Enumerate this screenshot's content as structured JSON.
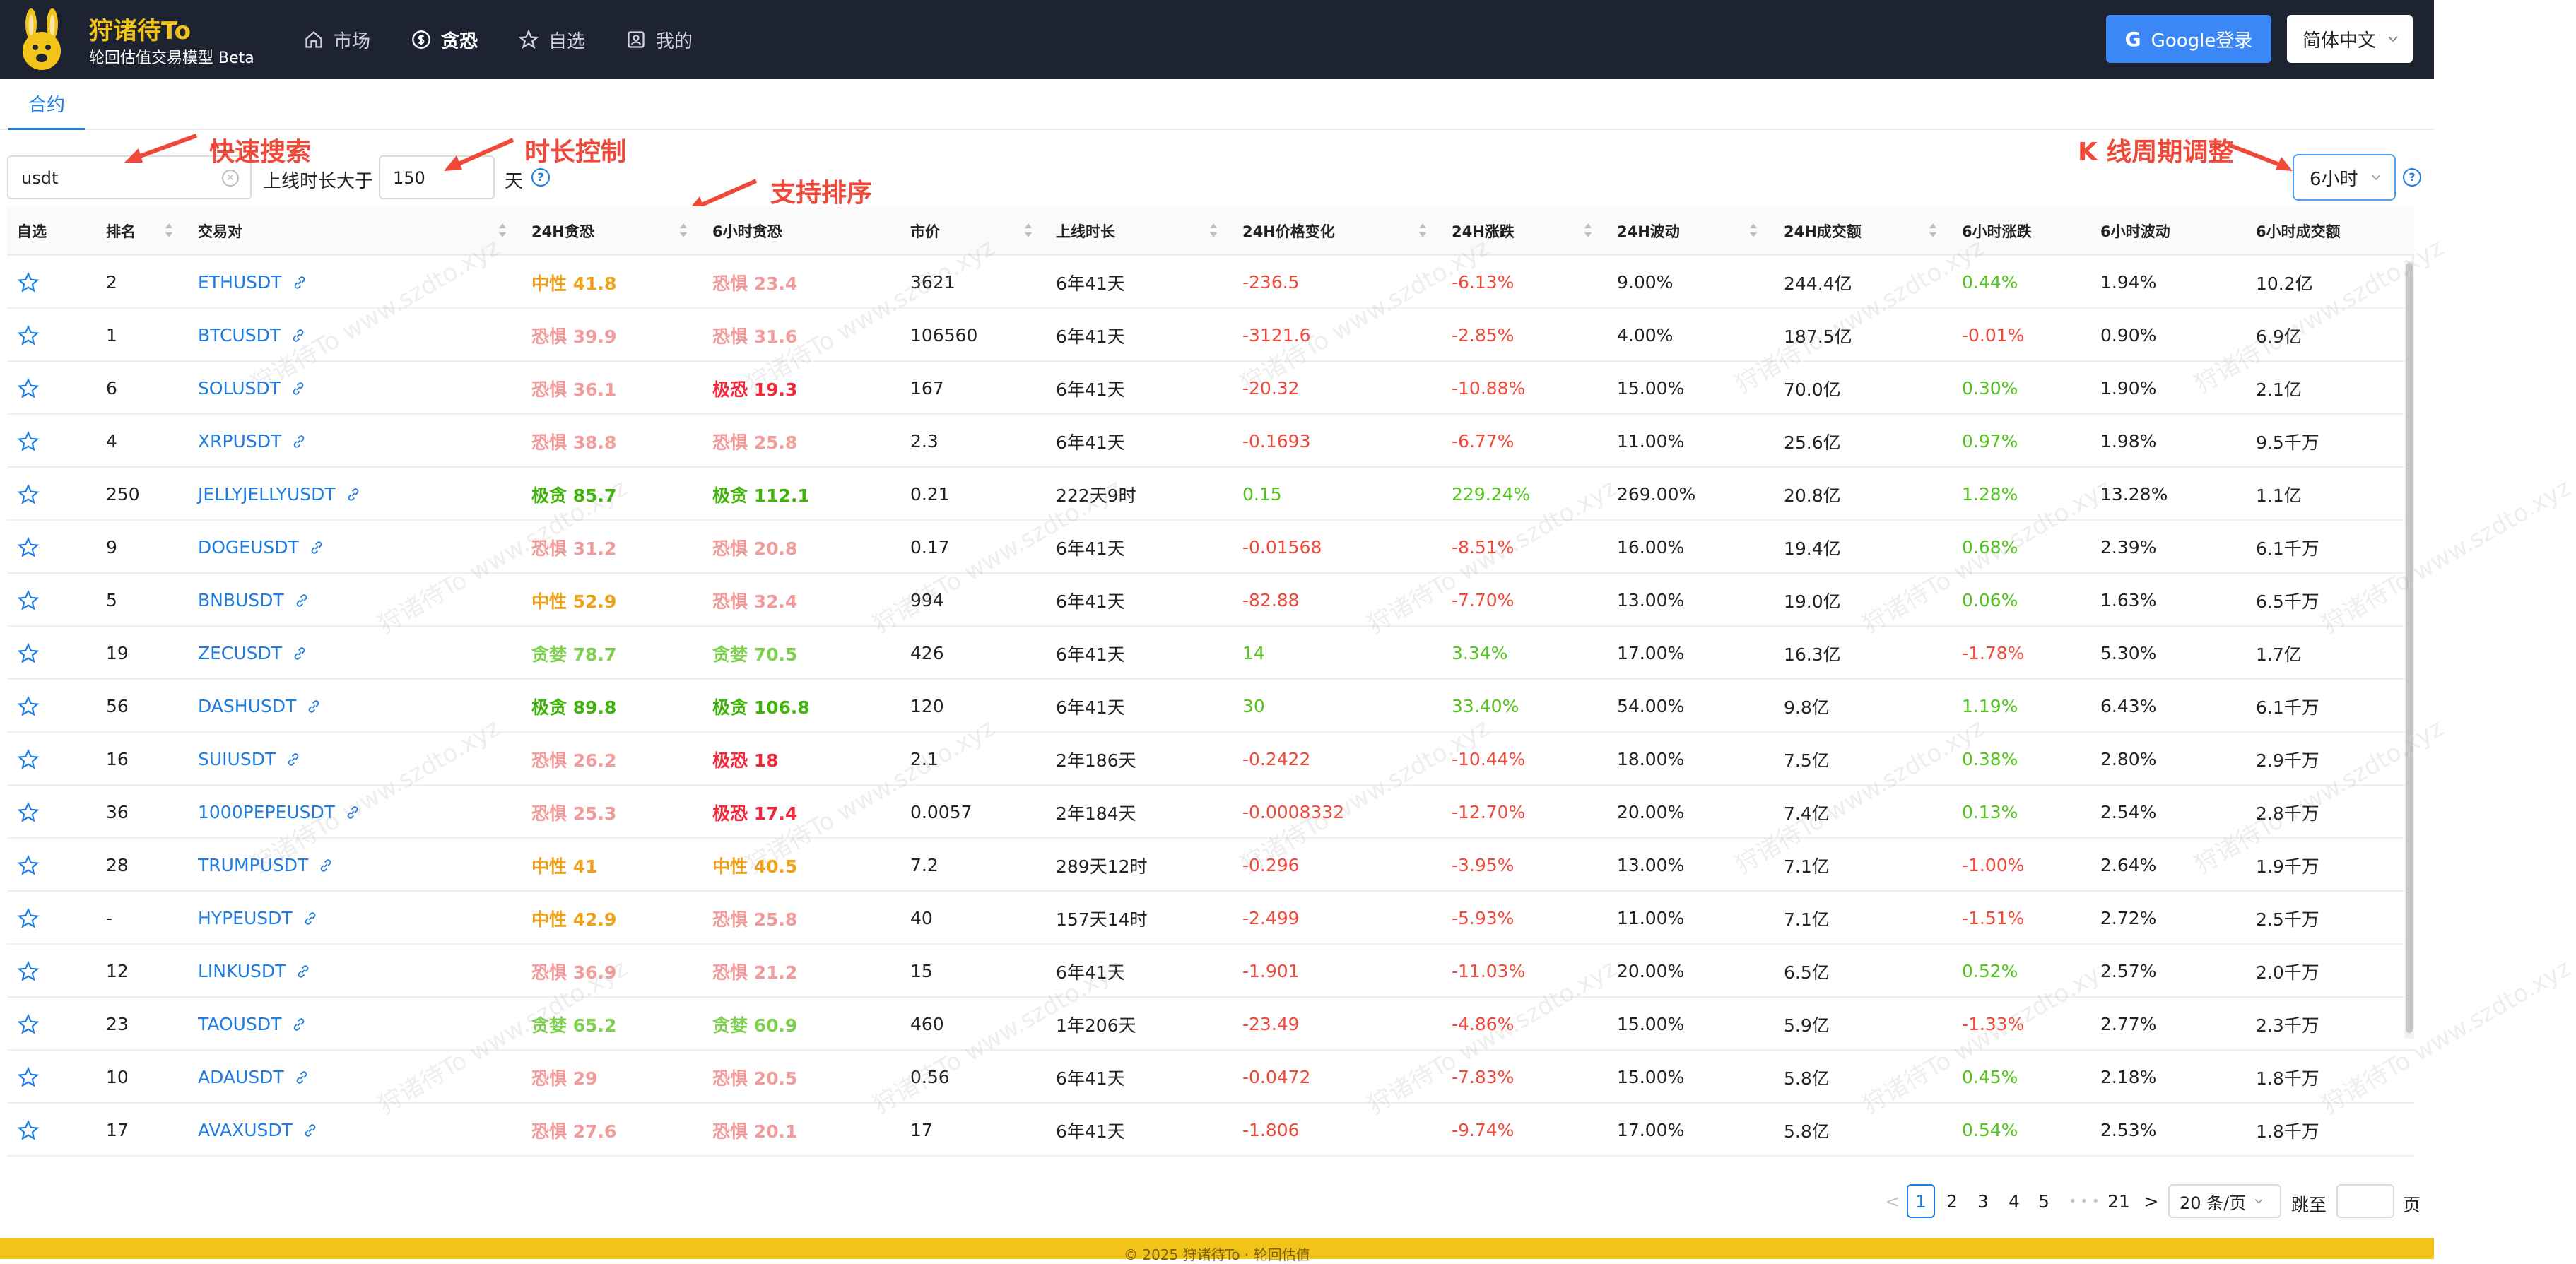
{
  "header": {
    "brand_title": "狩诸待To",
    "brand_subtitle": "轮回估值交易模型 Beta",
    "nav": [
      {
        "label": "市场",
        "icon": "home-icon",
        "active": false
      },
      {
        "label": "贪恐",
        "icon": "dollar-icon",
        "active": true
      },
      {
        "label": "自选",
        "icon": "star-icon",
        "active": false
      },
      {
        "label": "我的",
        "icon": "user-icon",
        "active": false
      }
    ],
    "login_label": "Google登录",
    "google_glyph": "G",
    "language": "简体中文"
  },
  "tabs": {
    "contract": "合约"
  },
  "filters": {
    "search_value": "usdt",
    "duration_label": "上线时长大于",
    "duration_value": "150",
    "duration_unit": "天",
    "period": "6小时",
    "help_glyph": "?"
  },
  "annotations": {
    "search": "快速搜索",
    "duration": "时长控制",
    "sort": "支持排序",
    "period": "K 线周期调整"
  },
  "table": {
    "headers": [
      "自选",
      "排名",
      "交易对",
      "24H贪恐",
      "6小时贪恐",
      "市价",
      "上线时长",
      "24H价格变化",
      "24H涨跌",
      "24H波动",
      "24H成交额",
      "6小时涨跌",
      "6小时波动",
      "6小时成交额"
    ],
    "rows": [
      {
        "rank": "2",
        "pair": "ETHUSDT",
        "s24": "中性 41.8",
        "s24c": "neutral",
        "s6": "恐惧 23.4",
        "s6c": "fear",
        "price": "3621",
        "age": "6年41天",
        "chg": "-236.5",
        "pct": "-6.13%",
        "vol": "9.00%",
        "amt": "244.4亿",
        "pct6": "0.44%",
        "vol6": "1.94%",
        "amt6": "10.2亿"
      },
      {
        "rank": "1",
        "pair": "BTCUSDT",
        "s24": "恐惧 39.9",
        "s24c": "fear",
        "s6": "恐惧 31.6",
        "s6c": "fear",
        "price": "106560",
        "age": "6年41天",
        "chg": "-3121.6",
        "pct": "-2.85%",
        "vol": "4.00%",
        "amt": "187.5亿",
        "pct6": "-0.01%",
        "vol6": "0.90%",
        "amt6": "6.9亿"
      },
      {
        "rank": "6",
        "pair": "SOLUSDT",
        "s24": "恐惧 36.1",
        "s24c": "fear",
        "s6": "极恐 19.3",
        "s6c": "xfear",
        "price": "167",
        "age": "6年41天",
        "chg": "-20.32",
        "pct": "-10.88%",
        "vol": "15.00%",
        "amt": "70.0亿",
        "pct6": "0.30%",
        "vol6": "1.90%",
        "amt6": "2.1亿"
      },
      {
        "rank": "4",
        "pair": "XRPUSDT",
        "s24": "恐惧 38.8",
        "s24c": "fear",
        "s6": "恐惧 25.8",
        "s6c": "fear",
        "price": "2.3",
        "age": "6年41天",
        "chg": "-0.1693",
        "pct": "-6.77%",
        "vol": "11.00%",
        "amt": "25.6亿",
        "pct6": "0.97%",
        "vol6": "1.98%",
        "amt6": "9.5千万"
      },
      {
        "rank": "250",
        "pair": "JELLYJELLYUSDT",
        "s24": "极贪 85.7",
        "s24c": "xgreed",
        "s6": "极贪 112.1",
        "s6c": "xgreed",
        "price": "0.21",
        "age": "222天9时",
        "chg": "0.15",
        "pct": "229.24%",
        "vol": "269.00%",
        "amt": "20.8亿",
        "pct6": "1.28%",
        "vol6": "13.28%",
        "amt6": "1.1亿"
      },
      {
        "rank": "9",
        "pair": "DOGEUSDT",
        "s24": "恐惧 31.2",
        "s24c": "fear",
        "s6": "恐惧 20.8",
        "s6c": "fear",
        "price": "0.17",
        "age": "6年41天",
        "chg": "-0.01568",
        "pct": "-8.51%",
        "vol": "16.00%",
        "amt": "19.4亿",
        "pct6": "0.68%",
        "vol6": "2.39%",
        "amt6": "6.1千万"
      },
      {
        "rank": "5",
        "pair": "BNBUSDT",
        "s24": "中性 52.9",
        "s24c": "neutral",
        "s6": "恐惧 32.4",
        "s6c": "fear",
        "price": "994",
        "age": "6年41天",
        "chg": "-82.88",
        "pct": "-7.70%",
        "vol": "13.00%",
        "amt": "19.0亿",
        "pct6": "0.06%",
        "vol6": "1.63%",
        "amt6": "6.5千万"
      },
      {
        "rank": "19",
        "pair": "ZECUSDT",
        "s24": "贪婪 78.7",
        "s24c": "greed",
        "s6": "贪婪 70.5",
        "s6c": "greed",
        "price": "426",
        "age": "6年41天",
        "chg": "14",
        "pct": "3.34%",
        "vol": "17.00%",
        "amt": "16.3亿",
        "pct6": "-1.78%",
        "vol6": "5.30%",
        "amt6": "1.7亿"
      },
      {
        "rank": "56",
        "pair": "DASHUSDT",
        "s24": "极贪 89.8",
        "s24c": "xgreed",
        "s6": "极贪 106.8",
        "s6c": "xgreed",
        "price": "120",
        "age": "6年41天",
        "chg": "30",
        "pct": "33.40%",
        "vol": "54.00%",
        "amt": "9.8亿",
        "pct6": "1.19%",
        "vol6": "6.43%",
        "amt6": "6.1千万"
      },
      {
        "rank": "16",
        "pair": "SUIUSDT",
        "s24": "恐惧 26.2",
        "s24c": "fear",
        "s6": "极恐 18",
        "s6c": "xfear",
        "price": "2.1",
        "age": "2年186天",
        "chg": "-0.2422",
        "pct": "-10.44%",
        "vol": "18.00%",
        "amt": "7.5亿",
        "pct6": "0.38%",
        "vol6": "2.80%",
        "amt6": "2.9千万"
      },
      {
        "rank": "36",
        "pair": "1000PEPEUSDT",
        "s24": "恐惧 25.3",
        "s24c": "fear",
        "s6": "极恐 17.4",
        "s6c": "xfear",
        "price": "0.0057",
        "age": "2年184天",
        "chg": "-0.0008332",
        "pct": "-12.70%",
        "vol": "20.00%",
        "amt": "7.4亿",
        "pct6": "0.13%",
        "vol6": "2.54%",
        "amt6": "2.8千万"
      },
      {
        "rank": "28",
        "pair": "TRUMPUSDT",
        "s24": "中性 41",
        "s24c": "neutral",
        "s6": "中性 40.5",
        "s6c": "neutral",
        "price": "7.2",
        "age": "289天12时",
        "chg": "-0.296",
        "pct": "-3.95%",
        "vol": "13.00%",
        "amt": "7.1亿",
        "pct6": "-1.00%",
        "vol6": "2.64%",
        "amt6": "1.9千万"
      },
      {
        "rank": "-",
        "pair": "HYPEUSDT",
        "s24": "中性 42.9",
        "s24c": "neutral",
        "s6": "恐惧 25.8",
        "s6c": "fear",
        "price": "40",
        "age": "157天14时",
        "chg": "-2.499",
        "pct": "-5.93%",
        "vol": "11.00%",
        "amt": "7.1亿",
        "pct6": "-1.51%",
        "vol6": "2.72%",
        "amt6": "2.5千万"
      },
      {
        "rank": "12",
        "pair": "LINKUSDT",
        "s24": "恐惧 36.9",
        "s24c": "fear",
        "s6": "恐惧 21.2",
        "s6c": "fear",
        "price": "15",
        "age": "6年41天",
        "chg": "-1.901",
        "pct": "-11.03%",
        "vol": "20.00%",
        "amt": "6.5亿",
        "pct6": "0.52%",
        "vol6": "2.57%",
        "amt6": "2.0千万"
      },
      {
        "rank": "23",
        "pair": "TAOUSDT",
        "s24": "贪婪 65.2",
        "s24c": "greed",
        "s6": "贪婪 60.9",
        "s6c": "greed",
        "price": "460",
        "age": "1年206天",
        "chg": "-23.49",
        "pct": "-4.86%",
        "vol": "15.00%",
        "amt": "5.9亿",
        "pct6": "-1.33%",
        "vol6": "2.77%",
        "amt6": "2.3千万"
      },
      {
        "rank": "10",
        "pair": "ADAUSDT",
        "s24": "恐惧 29",
        "s24c": "fear",
        "s6": "恐惧 20.5",
        "s6c": "fear",
        "price": "0.56",
        "age": "6年41天",
        "chg": "-0.0472",
        "pct": "-7.83%",
        "vol": "15.00%",
        "amt": "5.8亿",
        "pct6": "0.45%",
        "vol6": "2.18%",
        "amt6": "1.8千万"
      },
      {
        "rank": "17",
        "pair": "AVAXUSDT",
        "s24": "恐惧 27.6",
        "s24c": "fear",
        "s6": "恐惧 20.1",
        "s6c": "fear",
        "price": "17",
        "age": "6年41天",
        "chg": "-1.806",
        "pct": "-9.74%",
        "vol": "17.00%",
        "amt": "5.8亿",
        "pct6": "0.54%",
        "vol6": "2.53%",
        "amt6": "1.8千万"
      }
    ]
  },
  "pagination": {
    "prev": "<",
    "pages": [
      "1",
      "2",
      "3",
      "4",
      "5"
    ],
    "ellipsis": "• • •",
    "last": "21",
    "next": ">",
    "page_size": "20 条/页",
    "jump_label": "跳至",
    "page_suffix": "页",
    "current": "1"
  },
  "footer": {
    "text": "© 2025 狩诸待To · 轮回估值"
  },
  "watermark": "狩诸待To www.szdto.xyz",
  "colors": {
    "header_bg": "#1d2331",
    "brand": "#f2c319",
    "link": "#1e7ce0",
    "negative": "#f0493a",
    "positive": "#52c41a",
    "fear": "#f29b9b",
    "extreme_fear": "#f0283a",
    "neutral": "#f0a11a",
    "greed": "#7fcf4f",
    "extreme_greed": "#3fb30a"
  }
}
